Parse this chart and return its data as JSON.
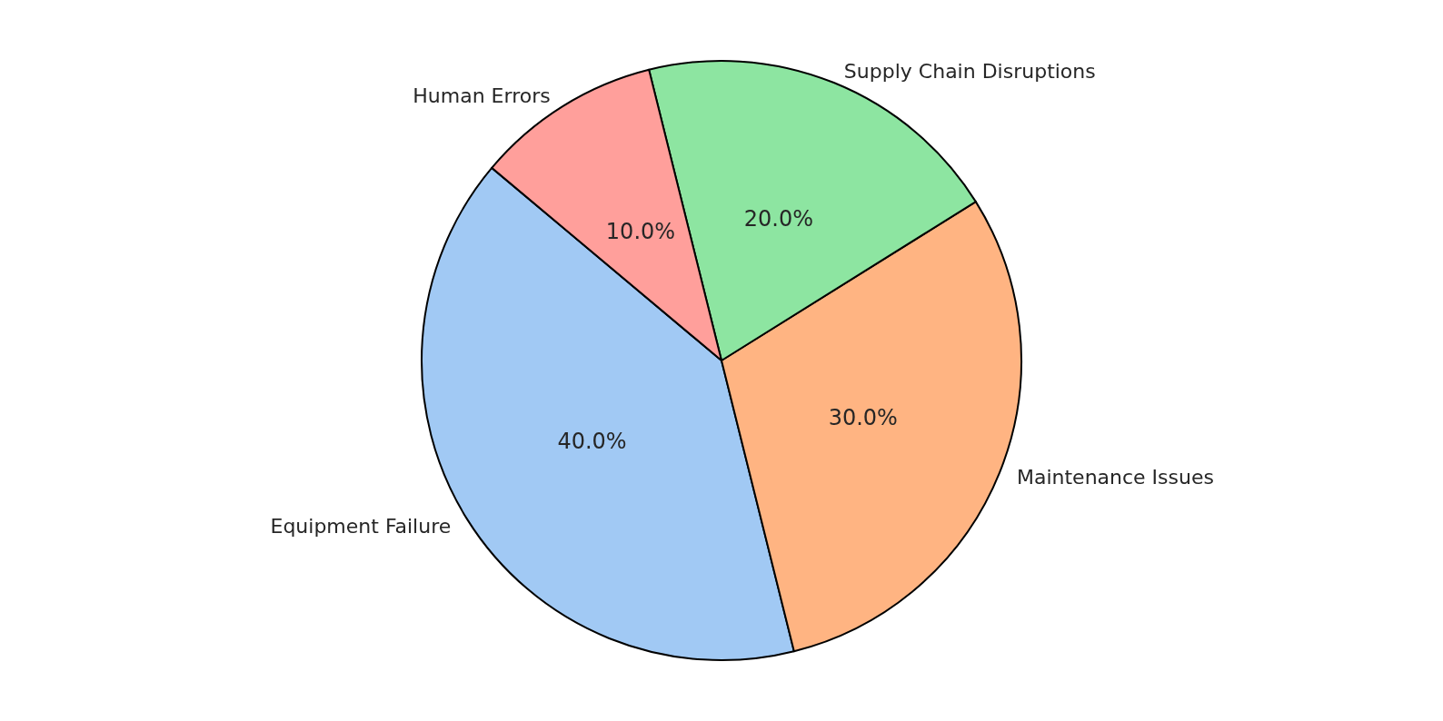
{
  "chart_data": {
    "type": "pie",
    "categories": [
      "Equipment Failure",
      "Maintenance Issues",
      "Supply Chain Disruptions",
      "Human Errors"
    ],
    "values": [
      40,
      30,
      20,
      10
    ],
    "colors": [
      "#a1c9f4",
      "#ffb482",
      "#8de5a1",
      "#ff9f9b"
    ],
    "value_labels": [
      "40.0%",
      "30.0%",
      "20.0%",
      "10.0%"
    ],
    "legend": false
  }
}
